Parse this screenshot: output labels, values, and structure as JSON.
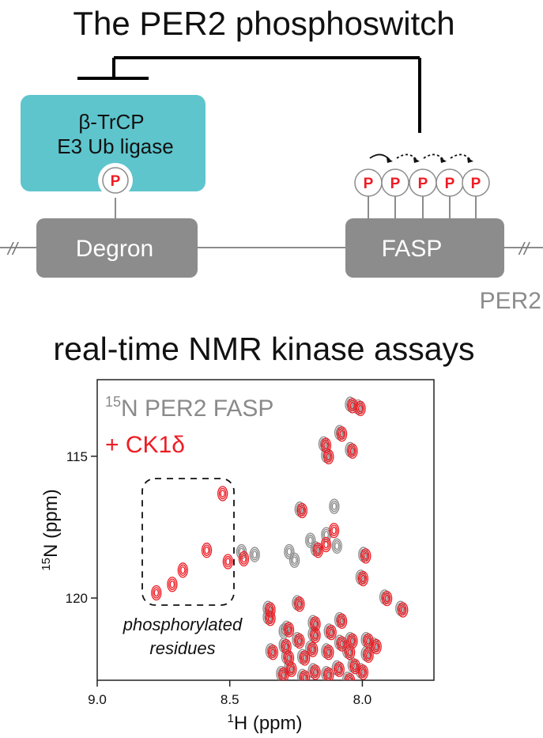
{
  "title": "The PER2 phosphoswitch",
  "ligase": {
    "line1": "β-TrCP",
    "line2": "E3 Ub ligase"
  },
  "phospho_label": "P",
  "degron_label": "Degron",
  "fasp_label": "FASP",
  "protein_label": "PER2",
  "break_marks": [
    "//",
    "//"
  ],
  "section_title": "real-time NMR kinase assays",
  "nmr": {
    "legend_sample_sup": "15",
    "legend_sample": "N PER2 FASP",
    "legend_kinase": "+ CK1δ",
    "annotation_line1": "phosphorylated",
    "annotation_line2": "residues",
    "x_axis_sup": "1",
    "x_axis_label": "H (ppm)",
    "y_axis_sup": "15",
    "y_axis_label": "N (ppm)",
    "x_ticks": [
      "9.0",
      "8.5",
      "8.0"
    ],
    "y_ticks": [
      "115",
      "120"
    ],
    "x_range_ppm": [
      9.0,
      7.73
    ],
    "y_range_ppm": [
      112.3,
      122.9
    ]
  },
  "colors": {
    "ligase_box": "#5ec5cd",
    "domain_box": "#8c8c8c",
    "phospho_red": "#ee1c24",
    "reference_gray": "#8a8a8a",
    "text": "#111111"
  },
  "chart_data": {
    "type": "scatter",
    "title": "",
    "xlabel": "1H (ppm)",
    "ylabel": "15N (ppm)",
    "xlim": [
      9.0,
      7.73
    ],
    "ylim": [
      122.9,
      112.3
    ],
    "series": [
      {
        "name": "15N PER2 FASP",
        "points": [
          [
            8.04,
            113.2
          ],
          [
            8.01,
            113.3
          ],
          [
            8.08,
            114.2
          ],
          [
            8.04,
            114.8
          ],
          [
            8.14,
            114.6
          ],
          [
            8.13,
            115.0
          ],
          [
            8.23,
            116.9
          ],
          [
            8.1,
            116.8
          ],
          [
            8.13,
            117.8
          ],
          [
            8.17,
            118.3
          ],
          [
            8.25,
            118.7
          ],
          [
            8.27,
            118.4
          ],
          [
            8.19,
            118.0
          ],
          [
            8.09,
            118.2
          ],
          [
            8.4,
            118.5
          ],
          [
            8.45,
            118.4
          ],
          [
            7.99,
            118.5
          ],
          [
            8.0,
            119.3
          ],
          [
            8.24,
            120.2
          ],
          [
            8.35,
            120.4
          ],
          [
            8.35,
            120.7
          ],
          [
            7.91,
            120.0
          ],
          [
            7.85,
            120.4
          ],
          [
            8.18,
            121.3
          ],
          [
            8.24,
            121.5
          ],
          [
            8.12,
            121.2
          ],
          [
            8.29,
            121.7
          ],
          [
            8.08,
            121.6
          ],
          [
            8.04,
            121.5
          ],
          [
            7.98,
            121.5
          ],
          [
            7.95,
            121.7
          ],
          [
            8.34,
            121.9
          ],
          [
            8.28,
            122.1
          ],
          [
            8.22,
            122.1
          ],
          [
            8.19,
            121.8
          ],
          [
            8.13,
            121.9
          ],
          [
            8.05,
            121.9
          ],
          [
            7.98,
            122.0
          ],
          [
            8.27,
            122.5
          ],
          [
            8.18,
            122.6
          ],
          [
            8.09,
            122.5
          ],
          [
            8.03,
            122.4
          ],
          [
            8.0,
            122.6
          ],
          [
            8.13,
            122.7
          ],
          [
            8.22,
            122.8
          ],
          [
            8.3,
            122.7
          ],
          [
            8.05,
            122.9
          ],
          [
            8.08,
            120.8
          ],
          [
            8.18,
            120.9
          ],
          [
            8.28,
            121.1
          ],
          [
            8.29,
            121.2
          ]
        ]
      },
      {
        "name": "+ CK1δ",
        "points": [
          [
            8.04,
            113.2
          ],
          [
            8.01,
            113.3
          ],
          [
            8.08,
            114.2
          ],
          [
            8.04,
            114.8
          ],
          [
            8.14,
            114.6
          ],
          [
            8.13,
            115.0
          ],
          [
            8.53,
            116.3
          ],
          [
            8.59,
            118.3
          ],
          [
            8.51,
            118.7
          ],
          [
            8.45,
            118.6
          ],
          [
            8.68,
            119.0
          ],
          [
            8.72,
            119.5
          ],
          [
            8.78,
            119.8
          ],
          [
            8.23,
            116.9
          ],
          [
            8.11,
            117.6
          ],
          [
            8.14,
            118.1
          ],
          [
            8.17,
            118.3
          ],
          [
            7.99,
            118.5
          ],
          [
            8.0,
            119.3
          ],
          [
            8.24,
            120.2
          ],
          [
            8.35,
            120.4
          ],
          [
            8.35,
            120.7
          ],
          [
            7.91,
            120.0
          ],
          [
            7.85,
            120.4
          ],
          [
            8.18,
            121.3
          ],
          [
            8.24,
            121.5
          ],
          [
            8.12,
            121.2
          ],
          [
            8.29,
            121.7
          ],
          [
            8.08,
            121.6
          ],
          [
            8.04,
            121.5
          ],
          [
            7.98,
            121.5
          ],
          [
            7.95,
            121.7
          ],
          [
            8.34,
            121.9
          ],
          [
            8.28,
            122.1
          ],
          [
            8.22,
            122.1
          ],
          [
            8.19,
            121.8
          ],
          [
            8.13,
            121.9
          ],
          [
            8.05,
            121.9
          ],
          [
            7.98,
            122.0
          ],
          [
            8.27,
            122.5
          ],
          [
            8.18,
            122.6
          ],
          [
            8.09,
            122.5
          ],
          [
            8.03,
            122.4
          ],
          [
            8.0,
            122.6
          ],
          [
            8.13,
            122.7
          ],
          [
            8.22,
            122.8
          ],
          [
            8.3,
            122.7
          ],
          [
            8.05,
            122.9
          ],
          [
            8.08,
            120.8
          ],
          [
            8.18,
            120.9
          ],
          [
            8.28,
            121.1
          ]
        ]
      }
    ]
  }
}
